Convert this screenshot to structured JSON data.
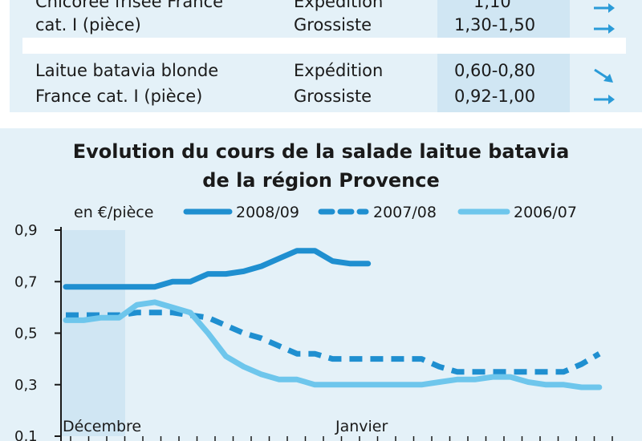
{
  "table": {
    "rows": [
      {
        "product_line1": "Chicorée frisée France",
        "product_line2": "cat. I (pièce)",
        "stage1": "Expédition",
        "stage2": "Grossiste",
        "price1": "1,10",
        "price2": "1,30-1,50",
        "trend1": "flat",
        "trend2": "flat"
      },
      {
        "product_line1": "Laitue batavia blonde",
        "product_line2": "France cat. I (pièce)",
        "stage1": "Expédition",
        "stage2": "Grossiste",
        "price1": "0,60-0,80",
        "price2": "0,92-1,00",
        "trend1": "down",
        "trend2": "flat"
      }
    ]
  },
  "chart_data": {
    "type": "line",
    "title_line1": "Evolution du cours de la salade laitue batavia",
    "title_line2": "de la région Provence",
    "unit_label": "en €/pièce",
    "ylim": [
      0.1,
      0.9
    ],
    "y_ticks": [
      "0,9",
      "0,7",
      "0,5",
      "0,3",
      "0,1"
    ],
    "x_labels": [
      "Décembre",
      "Janvier"
    ],
    "grid": false,
    "legend_position": "top",
    "series": [
      {
        "name": "2008/09",
        "style": "solid",
        "color": "#1f8fd0",
        "x": [
          1,
          2,
          3,
          4,
          5,
          6,
          7,
          8,
          9,
          10,
          11,
          12,
          13,
          14,
          15,
          16,
          17,
          18,
          19,
          20
        ],
        "values": [
          0.68,
          0.68,
          0.68,
          0.68,
          0.68,
          0.68,
          0.7,
          0.7,
          0.73,
          0.73,
          0.74,
          0.76,
          0.79,
          0.82,
          0.82,
          0.78,
          0.77,
          0.77,
          null,
          null
        ]
      },
      {
        "name": "2007/08",
        "style": "dashed",
        "color": "#1f8fd0",
        "x": [
          1,
          2,
          3,
          4,
          5,
          6,
          7,
          8,
          9,
          10,
          11,
          12,
          13,
          14,
          15,
          16,
          17,
          18,
          19,
          20,
          21,
          22,
          23,
          24,
          25,
          26,
          27,
          28,
          29,
          30,
          31,
          32
        ],
        "values": [
          0.57,
          0.57,
          0.57,
          0.57,
          0.58,
          0.58,
          0.58,
          0.57,
          0.56,
          0.53,
          0.5,
          0.48,
          0.45,
          0.42,
          0.42,
          0.4,
          0.4,
          0.4,
          0.4,
          0.4,
          0.4,
          0.37,
          0.35,
          0.35,
          0.35,
          0.35,
          0.35,
          0.35,
          0.35,
          0.38,
          0.42,
          null
        ]
      },
      {
        "name": "2006/07",
        "style": "solid",
        "color": "#6ec6ec",
        "x": [
          1,
          2,
          3,
          4,
          5,
          6,
          7,
          8,
          9,
          10,
          11,
          12,
          13,
          14,
          15,
          16,
          17,
          18,
          19,
          20,
          21,
          22,
          23,
          24,
          25,
          26,
          27,
          28,
          29,
          30,
          31,
          32
        ],
        "values": [
          0.55,
          0.55,
          0.56,
          0.56,
          0.61,
          0.62,
          0.6,
          0.58,
          0.5,
          0.41,
          0.37,
          0.34,
          0.32,
          0.32,
          0.3,
          0.3,
          0.3,
          0.3,
          0.3,
          0.3,
          0.3,
          0.31,
          0.32,
          0.32,
          0.33,
          0.33,
          0.31,
          0.3,
          0.3,
          0.29,
          0.29,
          null
        ]
      }
    ]
  },
  "colors": {
    "panel_bg": "#e4f1f8",
    "band": "#d0e6f3",
    "series_dark": "#1f8fd0",
    "series_light": "#6ec6ec"
  }
}
